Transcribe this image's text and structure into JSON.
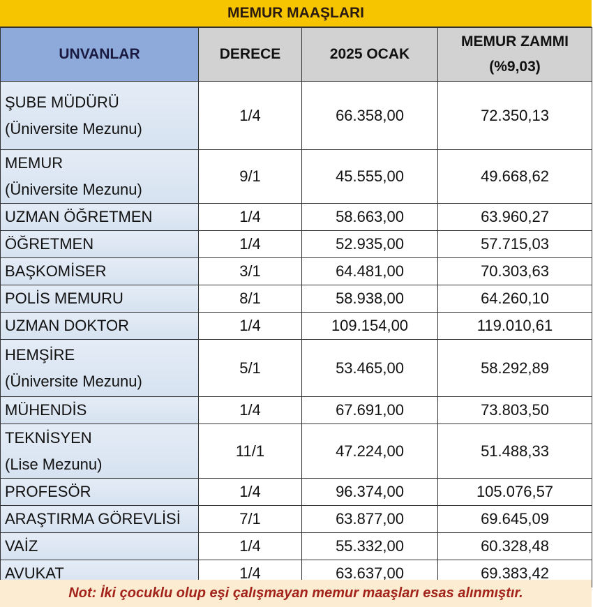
{
  "title": "MEMUR MAAŞLARI",
  "headers": [
    "UNVANLAR",
    "DERECE",
    "2025 OCAK",
    "MEMUR ZAMMI",
    "(%9,03)"
  ],
  "rows": [
    {
      "name": "ŞUBE MÜDÜRÜ",
      "sub": "(Üniversite Mezunu)",
      "derece": "1/4",
      "ocak": "66.358,00",
      "zam": "72.350,13"
    },
    {
      "name": "MEMUR",
      "sub": "(Üniversite Mezunu)",
      "derece": "9/1",
      "ocak": "45.555,00",
      "zam": "49.668,62"
    },
    {
      "name": "UZMAN ÖĞRETMEN",
      "derece": "1/4",
      "ocak": "58.663,00",
      "zam": "63.960,27"
    },
    {
      "name": "ÖĞRETMEN",
      "derece": "1/4",
      "ocak": "52.935,00",
      "zam": "57.715,03"
    },
    {
      "name": "BAŞKOMİSER",
      "derece": "3/1",
      "ocak": "64.481,00",
      "zam": "70.303,63"
    },
    {
      "name": "POLİS MEMURU",
      "derece": "8/1",
      "ocak": "58.938,00",
      "zam": "64.260,10"
    },
    {
      "name": "UZMAN DOKTOR",
      "derece": "1/4",
      "ocak": "109.154,00",
      "zam": "119.010,61"
    },
    {
      "name": "HEMŞİRE",
      "sub": "(Üniversite Mezunu)",
      "derece": "5/1",
      "ocak": "53.465,00",
      "zam": "58.292,89"
    },
    {
      "name": "MÜHENDİS",
      "derece": "1/4",
      "ocak": "67.691,00",
      "zam": "73.803,50"
    },
    {
      "name": "TEKNİSYEN",
      "sub": "(Lise Mezunu)",
      "derece": "11/1",
      "ocak": "47.224,00",
      "zam": "51.488,33"
    },
    {
      "name": "PROFESÖR",
      "derece": "1/4",
      "ocak": "96.374,00",
      "zam": "105.076,57"
    },
    {
      "name": "ARAŞTIRMA GÖREVLİSİ",
      "derece": "7/1",
      "ocak": "63.877,00",
      "zam": "69.645,09"
    },
    {
      "name": "VAİZ",
      "derece": "1/4",
      "ocak": "55.332,00",
      "zam": "60.328,48"
    },
    {
      "name": "AVUKAT",
      "derece": "1/4",
      "ocak": "63.637,00",
      "zam": "69.383,42"
    }
  ],
  "note": "Not: İki çocuklu olup eşi çalışmayan memur maaşları esas alınmıştır."
}
